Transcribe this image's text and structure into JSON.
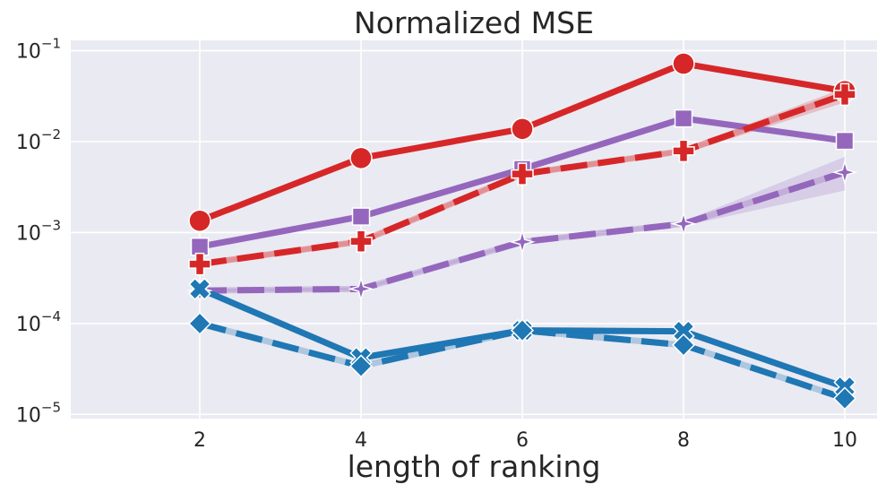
{
  "chart_data": {
    "type": "line",
    "title": "Normalized MSE",
    "xlabel": "length of ranking",
    "ylabel": "",
    "x": [
      2,
      4,
      6,
      8,
      10
    ],
    "xticks": [
      "2",
      "4",
      "6",
      "8",
      "10"
    ],
    "yscale": "log",
    "ylim": [
      9e-06,
      0.13
    ],
    "yticks": [
      {
        "value": 0.1,
        "base": "10",
        "exp": "−1"
      },
      {
        "value": 0.01,
        "base": "10",
        "exp": "−2"
      },
      {
        "value": 0.001,
        "base": "10",
        "exp": "−3"
      },
      {
        "value": 0.0001,
        "base": "10",
        "exp": "−4"
      },
      {
        "value": 1e-05,
        "base": "10",
        "exp": "−5"
      }
    ],
    "grid": true,
    "legend": "none",
    "series": [
      {
        "color": "#d62728",
        "dash": "solid",
        "marker": "circle",
        "values": [
          0.00135,
          0.0066,
          0.0138,
          0.072,
          0.036
        ],
        "band": false
      },
      {
        "color": "#9467bd",
        "dash": "solid",
        "marker": "square",
        "values": [
          0.0007,
          0.0015,
          0.005,
          0.018,
          0.0102
        ],
        "band": false
      },
      {
        "color": "#d62728",
        "dash": "dashed",
        "marker": "plus",
        "values": [
          0.00045,
          0.0008,
          0.0044,
          0.0079,
          0.033
        ],
        "band": true,
        "band_low": [
          0.00042,
          0.00075,
          0.0041,
          0.0074,
          0.027
        ],
        "band_high": [
          0.00048,
          0.00085,
          0.0047,
          0.0084,
          0.039
        ]
      },
      {
        "color": "#9467bd",
        "dash": "dashed",
        "marker": "star",
        "values": [
          0.00023,
          0.00024,
          0.00079,
          0.00125,
          0.0046
        ],
        "band": true,
        "band_low": [
          0.00022,
          0.00023,
          0.00075,
          0.00118,
          0.0029
        ],
        "band_high": [
          0.00024,
          0.00025,
          0.00083,
          0.00133,
          0.0068
        ]
      },
      {
        "color": "#1f77b4",
        "dash": "solid",
        "marker": "x",
        "values": [
          0.00024,
          4.2e-05,
          8.4e-05,
          8.2e-05,
          2e-05
        ],
        "band": false
      },
      {
        "color": "#1f77b4",
        "dash": "dashed",
        "marker": "diamond",
        "values": [
          0.0001,
          3.4e-05,
          8.4e-05,
          5.8e-05,
          1.5e-05
        ],
        "band": false
      }
    ]
  }
}
